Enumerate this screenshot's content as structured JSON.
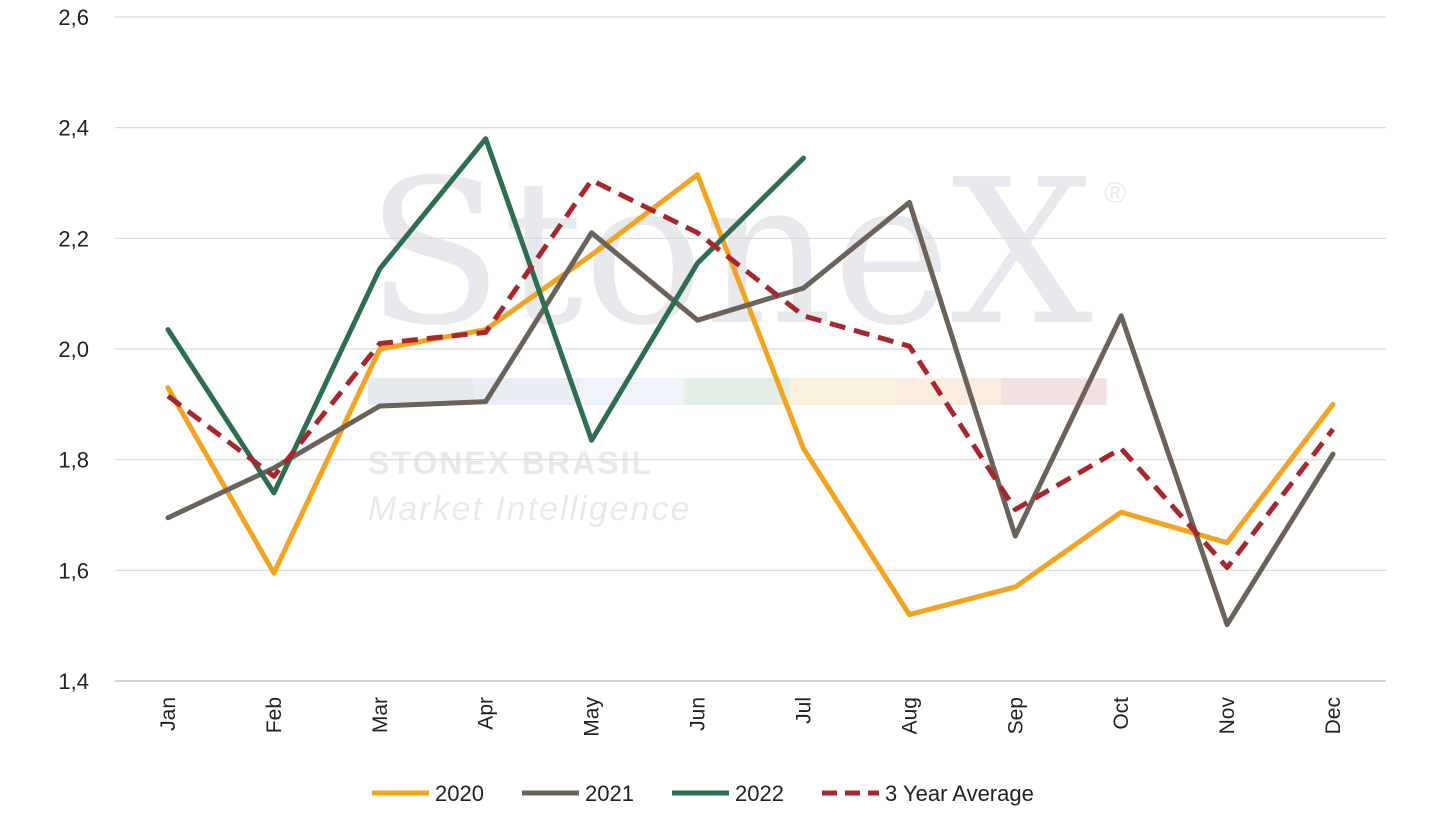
{
  "chart_data": {
    "type": "line",
    "categories": [
      "Jan",
      "Feb",
      "Mar",
      "Apr",
      "May",
      "Jun",
      "Jul",
      "Aug",
      "Sep",
      "Oct",
      "Nov",
      "Dec"
    ],
    "y_tick_labels": [
      "1,4",
      "1,6",
      "1,8",
      "2,0",
      "2,2",
      "2,4",
      "2,6"
    ],
    "ylim": [
      1.4,
      2.6
    ],
    "grid": true,
    "legend_position": "bottom",
    "series": [
      {
        "name": "2020",
        "color": "#f2a320",
        "dashed": false,
        "values": [
          1.93,
          1.595,
          2.0,
          2.035,
          2.17,
          2.315,
          1.82,
          1.52,
          1.57,
          1.705,
          1.65,
          1.9
        ]
      },
      {
        "name": "2021",
        "color": "#6b6259",
        "dashed": false,
        "values": [
          1.695,
          1.785,
          1.897,
          1.905,
          2.21,
          2.052,
          2.11,
          2.265,
          1.662,
          2.06,
          1.502,
          1.81
        ]
      },
      {
        "name": "2022",
        "color": "#2c6e4f",
        "dashed": false,
        "values": [
          2.035,
          1.74,
          2.145,
          2.38,
          1.835,
          2.155,
          2.345,
          null,
          null,
          null,
          null,
          null
        ]
      },
      {
        "name": "3 Year Average",
        "color": "#a8262e",
        "dashed": true,
        "values": [
          1.915,
          1.77,
          2.01,
          2.03,
          2.305,
          2.21,
          2.06,
          2.005,
          1.71,
          1.82,
          1.605,
          1.855
        ]
      }
    ]
  },
  "watermark": {
    "brand": "StoneX",
    "registered": "®",
    "line1": "STONEX BRASIL",
    "line2": "Market Intelligence",
    "band_colors": [
      "#e6e9ee",
      "#e9eef4",
      "#eef4fa",
      "#e4ede6",
      "#fbf1df",
      "#faede0",
      "#f3e1e1"
    ]
  }
}
